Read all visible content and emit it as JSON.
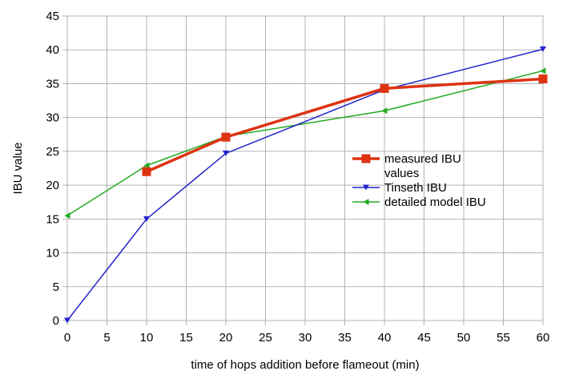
{
  "chart_data": {
    "type": "line",
    "xlabel": "time of hops addition before flameout (min)",
    "ylabel": "IBU value",
    "xlim": [
      0,
      60
    ],
    "ylim": [
      0,
      45
    ],
    "x_ticks": [
      0,
      5,
      10,
      15,
      20,
      25,
      30,
      35,
      40,
      45,
      50,
      55,
      60
    ],
    "y_ticks": [
      0,
      5,
      10,
      15,
      20,
      25,
      30,
      35,
      40,
      45
    ],
    "grid": true,
    "legend_placement": "right-middle",
    "series": [
      {
        "name": "measured IBU values",
        "name_lines": [
          "measured IBU",
          "values"
        ],
        "color": "#dd3311",
        "marker": "square",
        "x": [
          10,
          20,
          40,
          60
        ],
        "y": [
          22.0,
          27.1,
          34.3,
          35.7
        ]
      },
      {
        "name": "Tinseth IBU",
        "name_lines": [
          "Tinseth IBU"
        ],
        "color": "#2222cc",
        "marker": "triangle-down",
        "x": [
          0,
          10,
          20,
          40,
          60
        ],
        "y": [
          0,
          15.0,
          24.7,
          34.1,
          40.1
        ]
      },
      {
        "name": "detailed model IBU",
        "name_lines": [
          "detailed model IBU"
        ],
        "color": "#22aa22",
        "marker": "triangle-left",
        "x": [
          0,
          10,
          20,
          40,
          60
        ],
        "y": [
          15.5,
          22.9,
          27.2,
          31.0,
          36.9
        ]
      }
    ]
  }
}
